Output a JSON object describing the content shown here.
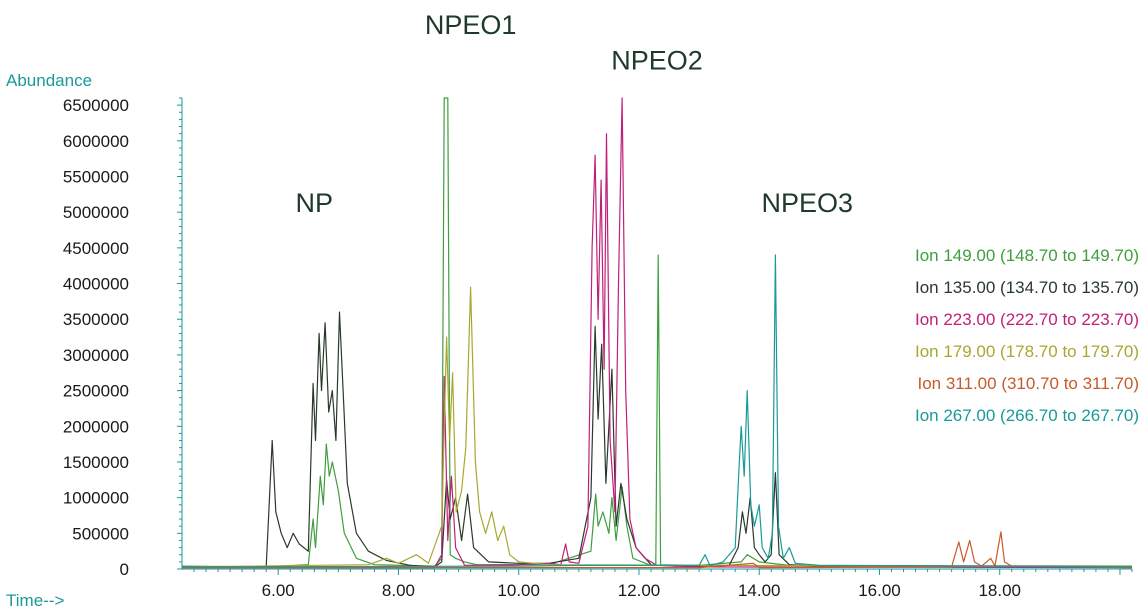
{
  "chart_data": {
    "type": "line",
    "ylabel": "Abundance",
    "xlabel": "Time-->",
    "xlim": [
      4.4,
      20.2
    ],
    "ylim": [
      0,
      6600000
    ],
    "x_ticks": [
      6,
      8,
      10,
      12,
      14,
      16,
      18
    ],
    "x_tick_labels": [
      "6.00",
      "8.00",
      "10.00",
      "12.00",
      "14.00",
      "16.00",
      "18.00"
    ],
    "y_ticks": [
      0,
      500000,
      1000000,
      1500000,
      2000000,
      2500000,
      3000000,
      3500000,
      4000000,
      4500000,
      5000000,
      5500000,
      6000000,
      6500000
    ],
    "y_tick_labels": [
      "0",
      "500000",
      "1000000",
      "1500000",
      "2000000",
      "2500000",
      "3000000",
      "3500000",
      "4000000",
      "4500000",
      "5000000",
      "5500000",
      "6000000",
      "6500000"
    ],
    "axis_color": "#1a9a9a",
    "annotations": [
      {
        "text": "NP",
        "x": 6.6,
        "y": 5000000
      },
      {
        "text": "NPEO1",
        "x": 9.2,
        "y": 7500000
      },
      {
        "text": "NPEO2",
        "x": 12.3,
        "y": 7000000
      },
      {
        "text": "NPEO3",
        "x": 14.8,
        "y": 5000000
      }
    ],
    "series": [
      {
        "name": "Ion 149.00 (148.70 to 149.70)",
        "color": "#3f9f3f",
        "points": [
          [
            4.4,
            40000
          ],
          [
            5.8,
            30000
          ],
          [
            6.0,
            40000
          ],
          [
            6.5,
            60000
          ],
          [
            6.58,
            700000
          ],
          [
            6.62,
            300000
          ],
          [
            6.7,
            1300000
          ],
          [
            6.75,
            900000
          ],
          [
            6.8,
            1750000
          ],
          [
            6.85,
            1300000
          ],
          [
            6.9,
            1500000
          ],
          [
            7.0,
            1100000
          ],
          [
            7.1,
            500000
          ],
          [
            7.3,
            150000
          ],
          [
            7.6,
            60000
          ],
          [
            8.6,
            40000
          ],
          [
            8.72,
            150000
          ],
          [
            8.76,
            6600000
          ],
          [
            8.82,
            6600000
          ],
          [
            8.86,
            200000
          ],
          [
            8.95,
            150000
          ],
          [
            9.1,
            100000
          ],
          [
            9.3,
            60000
          ],
          [
            10.5,
            60000
          ],
          [
            11.2,
            250000
          ],
          [
            11.28,
            1050000
          ],
          [
            11.32,
            600000
          ],
          [
            11.4,
            800000
          ],
          [
            11.5,
            500000
          ],
          [
            11.55,
            1000000
          ],
          [
            11.62,
            400000
          ],
          [
            11.72,
            1150000
          ],
          [
            11.8,
            600000
          ],
          [
            11.9,
            150000
          ],
          [
            12.2,
            50000
          ],
          [
            12.28,
            60000
          ],
          [
            12.32,
            4400000
          ],
          [
            12.36,
            60000
          ],
          [
            13.0,
            50000
          ],
          [
            13.7,
            100000
          ],
          [
            13.8,
            200000
          ],
          [
            14.0,
            100000
          ],
          [
            14.5,
            50000
          ],
          [
            20.2,
            40000
          ]
        ]
      },
      {
        "name": "Ion 135.00 (134.70 to 135.70)",
        "color": "#2a3a2a",
        "points": [
          [
            4.4,
            30000
          ],
          [
            5.8,
            30000
          ],
          [
            5.9,
            1800000
          ],
          [
            5.96,
            800000
          ],
          [
            6.05,
            500000
          ],
          [
            6.15,
            300000
          ],
          [
            6.25,
            500000
          ],
          [
            6.35,
            350000
          ],
          [
            6.5,
            250000
          ],
          [
            6.58,
            2600000
          ],
          [
            6.62,
            1800000
          ],
          [
            6.68,
            3300000
          ],
          [
            6.72,
            2500000
          ],
          [
            6.78,
            3450000
          ],
          [
            6.84,
            2200000
          ],
          [
            6.9,
            2500000
          ],
          [
            6.96,
            1800000
          ],
          [
            7.02,
            3600000
          ],
          [
            7.08,
            2500000
          ],
          [
            7.15,
            1200000
          ],
          [
            7.3,
            500000
          ],
          [
            7.5,
            250000
          ],
          [
            7.8,
            120000
          ],
          [
            8.2,
            50000
          ],
          [
            8.6,
            30000
          ],
          [
            8.72,
            100000
          ],
          [
            8.8,
            1250000
          ],
          [
            8.86,
            700000
          ],
          [
            8.95,
            1000000
          ],
          [
            9.05,
            400000
          ],
          [
            9.15,
            1050000
          ],
          [
            9.25,
            300000
          ],
          [
            9.5,
            100000
          ],
          [
            10.0,
            80000
          ],
          [
            10.5,
            80000
          ],
          [
            11.0,
            150000
          ],
          [
            11.2,
            1000000
          ],
          [
            11.27,
            3400000
          ],
          [
            11.32,
            2100000
          ],
          [
            11.38,
            3150000
          ],
          [
            11.45,
            1200000
          ],
          [
            11.55,
            2800000
          ],
          [
            11.62,
            600000
          ],
          [
            11.7,
            1200000
          ],
          [
            11.8,
            700000
          ],
          [
            11.95,
            300000
          ],
          [
            12.2,
            60000
          ],
          [
            12.6,
            40000
          ],
          [
            13.5,
            50000
          ],
          [
            13.65,
            300000
          ],
          [
            13.72,
            800000
          ],
          [
            13.78,
            500000
          ],
          [
            13.85,
            1000000
          ],
          [
            13.92,
            300000
          ],
          [
            14.0,
            200000
          ],
          [
            14.1,
            100000
          ],
          [
            14.2,
            200000
          ],
          [
            14.27,
            1350000
          ],
          [
            14.33,
            200000
          ],
          [
            14.5,
            60000
          ],
          [
            15.0,
            40000
          ],
          [
            20.2,
            30000
          ]
        ]
      },
      {
        "name": "Ion 223.00 (222.70 to 223.70)",
        "color": "#c0207a",
        "points": [
          [
            4.4,
            20000
          ],
          [
            8.6,
            20000
          ],
          [
            8.72,
            200000
          ],
          [
            8.76,
            2700000
          ],
          [
            8.82,
            400000
          ],
          [
            8.88,
            1300000
          ],
          [
            8.95,
            300000
          ],
          [
            9.1,
            50000
          ],
          [
            10.0,
            60000
          ],
          [
            10.5,
            80000
          ],
          [
            10.7,
            60000
          ],
          [
            10.78,
            350000
          ],
          [
            10.84,
            100000
          ],
          [
            11.0,
            80000
          ],
          [
            11.15,
            600000
          ],
          [
            11.22,
            4500000
          ],
          [
            11.27,
            5800000
          ],
          [
            11.32,
            3500000
          ],
          [
            11.37,
            5450000
          ],
          [
            11.42,
            2800000
          ],
          [
            11.46,
            6100000
          ],
          [
            11.52,
            1800000
          ],
          [
            11.6,
            800000
          ],
          [
            11.66,
            4000000
          ],
          [
            11.72,
            6600000
          ],
          [
            11.78,
            2500000
          ],
          [
            11.85,
            700000
          ],
          [
            11.95,
            300000
          ],
          [
            12.1,
            150000
          ],
          [
            12.3,
            50000
          ],
          [
            13.0,
            30000
          ],
          [
            20.2,
            20000
          ]
        ]
      },
      {
        "name": "Ion 179.00 (178.70 to 179.70)",
        "color": "#a8a830",
        "points": [
          [
            4.4,
            30000
          ],
          [
            7.5,
            60000
          ],
          [
            7.8,
            150000
          ],
          [
            8.0,
            80000
          ],
          [
            8.3,
            200000
          ],
          [
            8.5,
            80000
          ],
          [
            8.72,
            600000
          ],
          [
            8.8,
            3250000
          ],
          [
            8.85,
            1800000
          ],
          [
            8.9,
            2750000
          ],
          [
            8.96,
            800000
          ],
          [
            9.05,
            1100000
          ],
          [
            9.12,
            1700000
          ],
          [
            9.2,
            3950000
          ],
          [
            9.28,
            1500000
          ],
          [
            9.35,
            800000
          ],
          [
            9.45,
            500000
          ],
          [
            9.55,
            800000
          ],
          [
            9.65,
            400000
          ],
          [
            9.75,
            600000
          ],
          [
            9.85,
            200000
          ],
          [
            10.0,
            100000
          ],
          [
            10.5,
            60000
          ],
          [
            20.2,
            30000
          ]
        ]
      },
      {
        "name": "Ion 311.00 (310.70 to 311.70)",
        "color": "#c85a2a",
        "points": [
          [
            4.4,
            20000
          ],
          [
            13.0,
            20000
          ],
          [
            13.9,
            80000
          ],
          [
            14.0,
            20000
          ],
          [
            17.2,
            30000
          ],
          [
            17.32,
            380000
          ],
          [
            17.4,
            100000
          ],
          [
            17.5,
            400000
          ],
          [
            17.58,
            100000
          ],
          [
            17.7,
            40000
          ],
          [
            17.85,
            150000
          ],
          [
            17.92,
            40000
          ],
          [
            18.02,
            520000
          ],
          [
            18.08,
            100000
          ],
          [
            18.2,
            40000
          ],
          [
            20.2,
            20000
          ]
        ]
      },
      {
        "name": "Ion 267.00 (266.70 to 267.70)",
        "color": "#1a9a9a",
        "points": [
          [
            4.4,
            30000
          ],
          [
            10.0,
            40000
          ],
          [
            11.0,
            50000
          ],
          [
            13.0,
            50000
          ],
          [
            13.1,
            200000
          ],
          [
            13.18,
            50000
          ],
          [
            13.4,
            100000
          ],
          [
            13.6,
            300000
          ],
          [
            13.66,
            1350000
          ],
          [
            13.7,
            2000000
          ],
          [
            13.75,
            1300000
          ],
          [
            13.8,
            2500000
          ],
          [
            13.86,
            900000
          ],
          [
            13.92,
            600000
          ],
          [
            14.0,
            900000
          ],
          [
            14.05,
            300000
          ],
          [
            14.15,
            150000
          ],
          [
            14.22,
            500000
          ],
          [
            14.27,
            4400000
          ],
          [
            14.32,
            600000
          ],
          [
            14.4,
            150000
          ],
          [
            14.5,
            300000
          ],
          [
            14.6,
            80000
          ],
          [
            15.0,
            50000
          ],
          [
            20.2,
            30000
          ]
        ]
      }
    ]
  }
}
